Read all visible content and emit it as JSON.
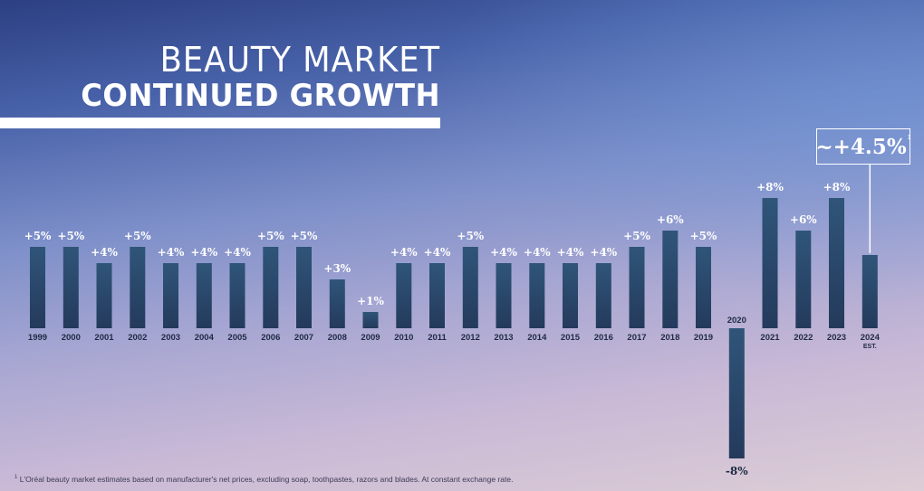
{
  "title": {
    "line1": "BEAUTY MARKET",
    "line2": "CONTINUED GROWTH"
  },
  "callout": {
    "text": "~+4.5%",
    "footnote_marker": "1"
  },
  "footnote": {
    "marker": "1",
    "text": "L'Oréal beauty market estimates based on manufacturer's net prices, excluding soap, toothpastes, razors and blades. At constant exchange rate."
  },
  "colors": {
    "bar_top": "#2f5579",
    "bar_bottom": "#243a5c",
    "text": "#ffffff",
    "axis_label": "#1f2a44"
  },
  "chart_data": {
    "type": "bar",
    "title": "BEAUTY MARKET CONTINUED GROWTH",
    "categories": [
      "1999",
      "2000",
      "2001",
      "2002",
      "2003",
      "2004",
      "2005",
      "2006",
      "2007",
      "2008",
      "2009",
      "2010",
      "2011",
      "2012",
      "2013",
      "2014",
      "2015",
      "2016",
      "2017",
      "2018",
      "2019",
      "2020",
      "2021",
      "2022",
      "2023",
      "2024"
    ],
    "category_sublabels": {
      "2024": "EST."
    },
    "values": [
      5,
      5,
      4,
      5,
      4,
      4,
      4,
      5,
      5,
      3,
      1,
      4,
      4,
      5,
      4,
      4,
      4,
      4,
      5,
      6,
      5,
      -8,
      8,
      6,
      8,
      4.5
    ],
    "data_labels": [
      "+5%",
      "+5%",
      "+4%",
      "+5%",
      "+4%",
      "+4%",
      "+4%",
      "+5%",
      "+5%",
      "+3%",
      "+1%",
      "+4%",
      "+4%",
      "+5%",
      "+4%",
      "+4%",
      "+4%",
      "+4%",
      "+5%",
      "+6%",
      "+5%",
      "-8%",
      "+8%",
      "+6%",
      "+8%",
      ""
    ],
    "unit": "%",
    "ylim": [
      -8,
      8
    ],
    "grid": false,
    "legend": "none",
    "highlight": {
      "category": "2024",
      "label": "~+4.5%"
    }
  }
}
